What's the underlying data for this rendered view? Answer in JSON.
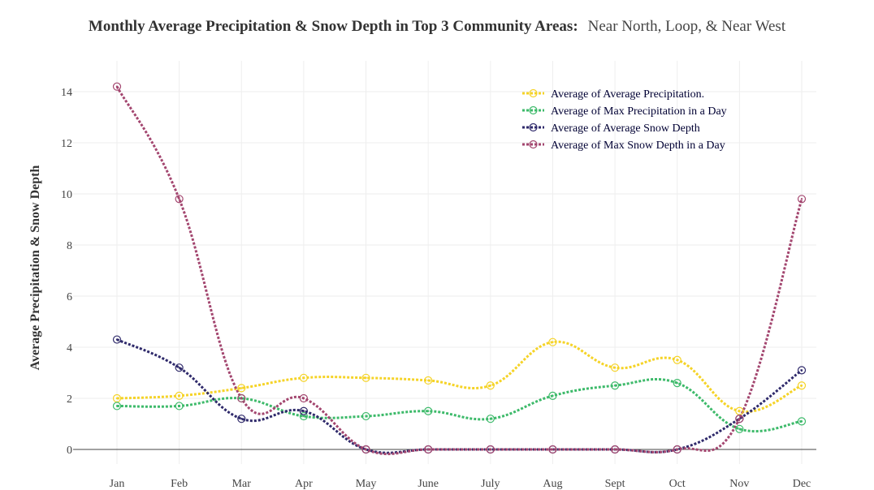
{
  "chart_data": {
    "type": "line",
    "title": "Monthly Average Precipitation & Snow Depth in Top 3 Community Areas:",
    "subtitle": "Near North, Loop, & Near West",
    "xlabel": "",
    "ylabel": "Average Precipitation & Snow Depth",
    "ylim": [
      -0.6,
      15
    ],
    "yticks": [
      0,
      2,
      4,
      6,
      8,
      10,
      12,
      14
    ],
    "grid": true,
    "legend_position": "top-right",
    "categories": [
      "Jan",
      "Feb",
      "Mar",
      "Apr",
      "May",
      "June",
      "July",
      "Aug",
      "Sept",
      "Oct",
      "Nov",
      "Dec"
    ],
    "series": [
      {
        "name": "Average of Average Precipitation.",
        "color": "#f5d327",
        "values": [
          2.0,
          2.1,
          2.4,
          2.8,
          2.8,
          2.7,
          2.5,
          4.2,
          3.2,
          3.5,
          1.5,
          2.5
        ]
      },
      {
        "name": "Average of Max Precipitation in a Day",
        "color": "#3dba6a",
        "values": [
          1.7,
          1.7,
          2.0,
          1.3,
          1.3,
          1.5,
          1.2,
          2.1,
          2.5,
          2.6,
          0.8,
          1.1
        ]
      },
      {
        "name": "Average of Average Snow Depth",
        "color": "#2f2a6b",
        "values": [
          4.3,
          3.2,
          1.2,
          1.5,
          0.0,
          0.0,
          0.0,
          0.0,
          0.0,
          0.0,
          1.2,
          3.1
        ]
      },
      {
        "name": "Average of Max Snow Depth in a Day",
        "color": "#a3466f",
        "values": [
          14.2,
          9.8,
          2.0,
          2.0,
          0.0,
          0.0,
          0.0,
          0.0,
          0.0,
          0.0,
          1.2,
          9.8
        ]
      }
    ]
  }
}
